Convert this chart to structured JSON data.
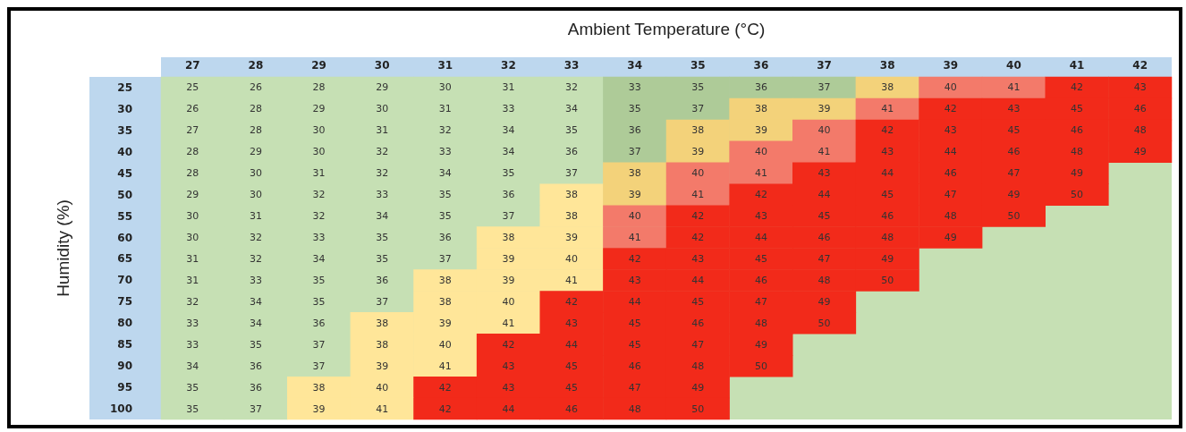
{
  "chart_data": {
    "type": "heatmap",
    "data_labels": true,
    "xlabel": "Ambient Temperature (°C)",
    "ylabel": "Humidity (%)",
    "categories": [
      "27",
      "28",
      "29",
      "30",
      "31",
      "32",
      "33",
      "34",
      "35",
      "36",
      "37",
      "38",
      "39",
      "40",
      "41",
      "42"
    ],
    "y_categories": [
      "25",
      "30",
      "35",
      "40",
      "45",
      "50",
      "55",
      "60",
      "65",
      "70",
      "75",
      "80",
      "85",
      "90",
      "95",
      "100"
    ],
    "cells": [
      [
        25,
        26,
        28,
        29,
        30,
        31,
        32,
        33,
        35,
        36,
        37,
        38,
        40,
        41,
        42,
        43
      ],
      [
        26,
        28,
        29,
        30,
        31,
        33,
        34,
        35,
        37,
        38,
        39,
        41,
        42,
        43,
        45,
        46
      ],
      [
        27,
        28,
        30,
        31,
        32,
        34,
        35,
        36,
        38,
        39,
        40,
        42,
        43,
        45,
        46,
        48
      ],
      [
        28,
        29,
        30,
        32,
        33,
        34,
        36,
        37,
        39,
        40,
        41,
        43,
        44,
        46,
        48,
        49
      ],
      [
        28,
        30,
        31,
        32,
        34,
        35,
        37,
        38,
        40,
        41,
        43,
        44,
        46,
        47,
        49,
        null
      ],
      [
        29,
        30,
        32,
        33,
        35,
        36,
        38,
        39,
        41,
        42,
        44,
        45,
        47,
        49,
        50,
        null
      ],
      [
        30,
        31,
        32,
        34,
        35,
        37,
        38,
        40,
        42,
        43,
        45,
        46,
        48,
        50,
        null,
        null
      ],
      [
        30,
        32,
        33,
        35,
        36,
        38,
        39,
        41,
        42,
        44,
        46,
        48,
        49,
        null,
        null,
        null
      ],
      [
        31,
        32,
        34,
        35,
        37,
        39,
        40,
        42,
        43,
        45,
        47,
        49,
        null,
        null,
        null,
        null
      ],
      [
        31,
        33,
        35,
        36,
        38,
        39,
        41,
        43,
        44,
        46,
        48,
        50,
        null,
        null,
        null,
        null
      ],
      [
        32,
        34,
        35,
        37,
        38,
        40,
        42,
        44,
        45,
        47,
        49,
        null,
        null,
        null,
        null,
        null
      ],
      [
        33,
        34,
        36,
        38,
        39,
        41,
        43,
        45,
        46,
        48,
        50,
        null,
        null,
        null,
        null,
        null
      ],
      [
        33,
        35,
        37,
        38,
        40,
        42,
        44,
        45,
        47,
        49,
        null,
        null,
        null,
        null,
        null,
        null
      ],
      [
        34,
        36,
        37,
        39,
        41,
        43,
        45,
        46,
        48,
        50,
        null,
        null,
        null,
        null,
        null,
        null
      ],
      [
        35,
        36,
        38,
        40,
        42,
        43,
        45,
        47,
        49,
        null,
        null,
        null,
        null,
        null,
        null,
        null
      ],
      [
        35,
        37,
        39,
        41,
        42,
        44,
        46,
        48,
        50,
        null,
        null,
        null,
        null,
        null,
        null,
        null
      ]
    ],
    "colors": [
      [
        "#c6e0b4",
        "#c6e0b4",
        "#c6e0b4",
        "#c6e0b4",
        "#c6e0b4",
        "#c6e0b4",
        "#c6e0b4",
        "#aecb98",
        "#aecb98",
        "#aecb98",
        "#aecb98",
        "#f3d27a",
        "#f37a6a",
        "#f37a6a",
        "#f22a1a",
        "#f22a1a"
      ],
      [
        "#c6e0b4",
        "#c6e0b4",
        "#c6e0b4",
        "#c6e0b4",
        "#c6e0b4",
        "#c6e0b4",
        "#c6e0b4",
        "#aecb98",
        "#aecb98",
        "#f3d27a",
        "#f3d27a",
        "#f37a6a",
        "#f22a1a",
        "#f22a1a",
        "#f22a1a",
        "#f22a1a"
      ],
      [
        "#c6e0b4",
        "#c6e0b4",
        "#c6e0b4",
        "#c6e0b4",
        "#c6e0b4",
        "#c6e0b4",
        "#c6e0b4",
        "#aecb98",
        "#f3d27a",
        "#f3d27a",
        "#f37a6a",
        "#f22a1a",
        "#f22a1a",
        "#f22a1a",
        "#f22a1a",
        "#f22a1a"
      ],
      [
        "#c6e0b4",
        "#c6e0b4",
        "#c6e0b4",
        "#c6e0b4",
        "#c6e0b4",
        "#c6e0b4",
        "#c6e0b4",
        "#aecb98",
        "#f3d27a",
        "#f37a6a",
        "#f37a6a",
        "#f22a1a",
        "#f22a1a",
        "#f22a1a",
        "#f22a1a",
        "#f22a1a"
      ],
      [
        "#c6e0b4",
        "#c6e0b4",
        "#c6e0b4",
        "#c6e0b4",
        "#c6e0b4",
        "#c6e0b4",
        "#c6e0b4",
        "#f3d27a",
        "#f37a6a",
        "#f37a6a",
        "#f22a1a",
        "#f22a1a",
        "#f22a1a",
        "#f22a1a",
        "#f22a1a",
        "#c6e0b4"
      ],
      [
        "#c6e0b4",
        "#c6e0b4",
        "#c6e0b4",
        "#c6e0b4",
        "#c6e0b4",
        "#c6e0b4",
        "#ffe699",
        "#f3d27a",
        "#f37a6a",
        "#f22a1a",
        "#f22a1a",
        "#f22a1a",
        "#f22a1a",
        "#f22a1a",
        "#f22a1a",
        "#c6e0b4"
      ],
      [
        "#c6e0b4",
        "#c6e0b4",
        "#c6e0b4",
        "#c6e0b4",
        "#c6e0b4",
        "#c6e0b4",
        "#ffe699",
        "#f37a6a",
        "#f22a1a",
        "#f22a1a",
        "#f22a1a",
        "#f22a1a",
        "#f22a1a",
        "#f22a1a",
        "#c6e0b4",
        "#c6e0b4"
      ],
      [
        "#c6e0b4",
        "#c6e0b4",
        "#c6e0b4",
        "#c6e0b4",
        "#c6e0b4",
        "#ffe699",
        "#ffe699",
        "#f37a6a",
        "#f22a1a",
        "#f22a1a",
        "#f22a1a",
        "#f22a1a",
        "#f22a1a",
        "#c6e0b4",
        "#c6e0b4",
        "#c6e0b4"
      ],
      [
        "#c6e0b4",
        "#c6e0b4",
        "#c6e0b4",
        "#c6e0b4",
        "#c6e0b4",
        "#ffe699",
        "#ffe699",
        "#f22a1a",
        "#f22a1a",
        "#f22a1a",
        "#f22a1a",
        "#f22a1a",
        "#c6e0b4",
        "#c6e0b4",
        "#c6e0b4",
        "#c6e0b4"
      ],
      [
        "#c6e0b4",
        "#c6e0b4",
        "#c6e0b4",
        "#c6e0b4",
        "#ffe699",
        "#ffe699",
        "#ffe699",
        "#f22a1a",
        "#f22a1a",
        "#f22a1a",
        "#f22a1a",
        "#f22a1a",
        "#c6e0b4",
        "#c6e0b4",
        "#c6e0b4",
        "#c6e0b4"
      ],
      [
        "#c6e0b4",
        "#c6e0b4",
        "#c6e0b4",
        "#c6e0b4",
        "#ffe699",
        "#ffe699",
        "#f22a1a",
        "#f22a1a",
        "#f22a1a",
        "#f22a1a",
        "#f22a1a",
        "#c6e0b4",
        "#c6e0b4",
        "#c6e0b4",
        "#c6e0b4",
        "#c6e0b4"
      ],
      [
        "#c6e0b4",
        "#c6e0b4",
        "#c6e0b4",
        "#ffe699",
        "#ffe699",
        "#ffe699",
        "#f22a1a",
        "#f22a1a",
        "#f22a1a",
        "#f22a1a",
        "#f22a1a",
        "#c6e0b4",
        "#c6e0b4",
        "#c6e0b4",
        "#c6e0b4",
        "#c6e0b4"
      ],
      [
        "#c6e0b4",
        "#c6e0b4",
        "#c6e0b4",
        "#ffe699",
        "#ffe699",
        "#f22a1a",
        "#f22a1a",
        "#f22a1a",
        "#f22a1a",
        "#f22a1a",
        "#c6e0b4",
        "#c6e0b4",
        "#c6e0b4",
        "#c6e0b4",
        "#c6e0b4",
        "#c6e0b4"
      ],
      [
        "#c6e0b4",
        "#c6e0b4",
        "#c6e0b4",
        "#ffe699",
        "#ffe699",
        "#f22a1a",
        "#f22a1a",
        "#f22a1a",
        "#f22a1a",
        "#f22a1a",
        "#c6e0b4",
        "#c6e0b4",
        "#c6e0b4",
        "#c6e0b4",
        "#c6e0b4",
        "#c6e0b4"
      ],
      [
        "#c6e0b4",
        "#c6e0b4",
        "#ffe699",
        "#ffe699",
        "#f22a1a",
        "#f22a1a",
        "#f22a1a",
        "#f22a1a",
        "#f22a1a",
        "#c6e0b4",
        "#c6e0b4",
        "#c6e0b4",
        "#c6e0b4",
        "#c6e0b4",
        "#c6e0b4",
        "#c6e0b4"
      ],
      [
        "#c6e0b4",
        "#c6e0b4",
        "#ffe699",
        "#ffe699",
        "#f22a1a",
        "#f22a1a",
        "#f22a1a",
        "#f22a1a",
        "#f22a1a",
        "#c6e0b4",
        "#c6e0b4",
        "#c6e0b4",
        "#c6e0b4",
        "#c6e0b4",
        "#c6e0b4",
        "#c6e0b4"
      ]
    ]
  }
}
